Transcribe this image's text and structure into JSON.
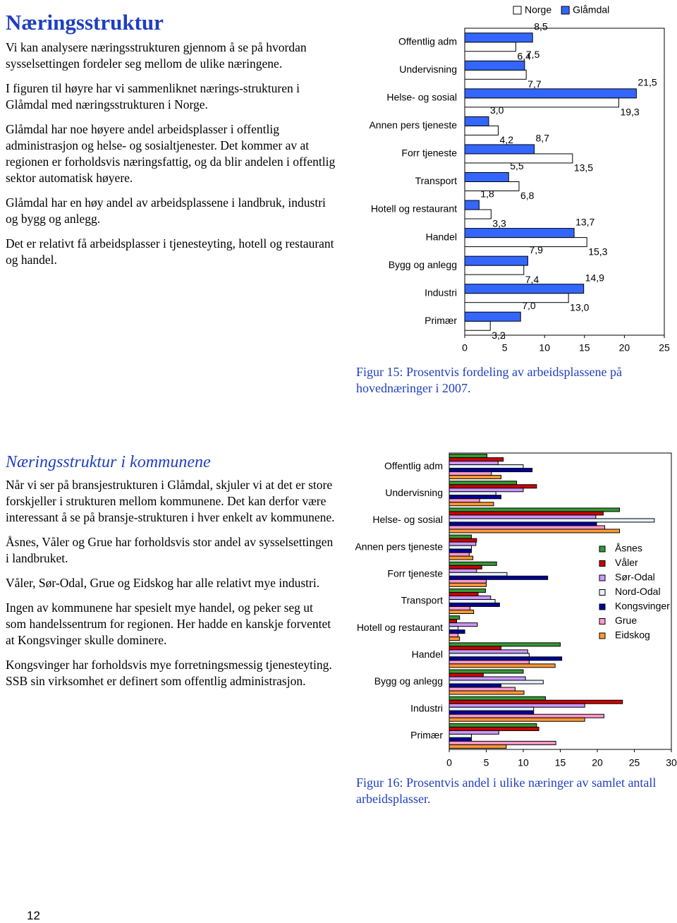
{
  "intro": {
    "title": "Næringsstruktur",
    "paragraphs": [
      "Vi kan analysere næringsstrukturen gjennom å se på hvordan sysselsettingen fordeler seg mellom de ulike næringene.",
      "I figuren til høyre har vi sammenliknet nærings-strukturen i Glåmdal med næringsstrukturen i Norge.",
      "Glåmdal har noe høyere andel arbeidsplasser i offentlig administrasjon og helse- og sosialtjenester. Det kommer av at regionen er forholdsvis næringsfattig, og da blir andelen i offentlig sektor automatisk høyere.",
      "Glåmdal har en høy andel av arbeidsplassene i landbruk, industri og bygg og anlegg.",
      "Det er relativt få arbeidsplasser i tjenesteyting, hotell og restaurant og handel."
    ]
  },
  "section2": {
    "title": "Næringsstruktur i kommunene",
    "paragraphs": [
      "Når vi ser på bransjestrukturen i Glåmdal, skjuler vi at det er store forskjeller i strukturen mellom kommunene. Det kan derfor være interessant å se på bransje-strukturen i hver enkelt av kommunene.",
      "Åsnes, Våler og Grue har forholdsvis stor andel av sysselsettingen i landbruket.",
      "Våler, Sør-Odal, Grue og Eidskog har alle relativt mye industri.",
      "Ingen av kommunene har spesielt mye handel, og peker seg ut som handelssentrum for regionen.  Her hadde en kanskje forventet at Kongsvinger skulle dominere.",
      "Kongsvinger har forholdsvis mye forretningsmessig tjenesteyting.  SSB sin virksomhet er definert som offentlig administrasjon."
    ]
  },
  "page_number": "12",
  "chart_data": [
    {
      "type": "bar",
      "orientation": "horizontal",
      "categories": [
        "Offentlig adm",
        "Undervisning",
        "Helse- og sosial",
        "Annen pers tjeneste",
        "Forr tjeneste",
        "Transport",
        "Hotell og restaurant",
        "Handel",
        "Bygg og anlegg",
        "Industri",
        "Primær"
      ],
      "series": [
        {
          "name": "Norge",
          "color": "#ffffff",
          "values": [
            6.4,
            7.7,
            19.3,
            4.2,
            13.5,
            6.8,
            3.3,
            15.3,
            7.4,
            13.0,
            3.2
          ],
          "value_labels": [
            "6,4",
            "7,7",
            "19,3",
            "4,2",
            "13,5",
            "6,8",
            "3,3",
            "15,3",
            "7,4",
            "13,0",
            "3,2"
          ]
        },
        {
          "name": "Glåmdal",
          "color": "#3366ff",
          "values": [
            8.5,
            7.5,
            21.5,
            3.0,
            8.7,
            5.5,
            1.8,
            13.7,
            7.9,
            14.9,
            7.0
          ],
          "value_labels": [
            "8,5",
            "7,5",
            "21,5",
            "3,0",
            "8,7",
            "5,5",
            "1,8",
            "13,7",
            "7,9",
            "14,9",
            "7,0"
          ]
        }
      ],
      "xlim": [
        0,
        25
      ],
      "xticks": [
        0,
        5,
        10,
        15,
        20,
        25
      ],
      "legend": "top",
      "caption": "Figur 15: Prosentvis fordeling av arbeidsplassene på hovednæringer i 2007."
    },
    {
      "type": "bar",
      "orientation": "horizontal",
      "categories": [
        "Offentlig adm",
        "Undervisning",
        "Helse- og sosial",
        "Annen pers tjeneste",
        "Forr tjeneste",
        "Transport",
        "Hotell og restaurant",
        "Handel",
        "Bygg og anlegg",
        "Industri",
        "Primær"
      ],
      "series": [
        {
          "name": "Åsnes",
          "color": "#339933",
          "values": [
            5.1,
            9.1,
            23.0,
            3.0,
            6.4,
            4.9,
            1.4,
            15.0,
            10.0,
            13.0,
            11.8
          ]
        },
        {
          "name": "Våler",
          "color": "#cc0000",
          "values": [
            7.3,
            11.8,
            20.8,
            3.7,
            4.4,
            3.9,
            1.0,
            7.0,
            4.6,
            23.4,
            12.1
          ]
        },
        {
          "name": "Sør-Odal",
          "color": "#cc99ff",
          "values": [
            6.6,
            10.0,
            19.8,
            3.6,
            3.7,
            5.6,
            3.8,
            10.6,
            10.3,
            18.3,
            6.7
          ]
        },
        {
          "name": "Nord-Odal",
          "color": "#e6f2ff",
          "values": [
            10.0,
            6.3,
            27.7,
            3.0,
            7.8,
            6.2,
            1.2,
            10.8,
            12.7,
            11.4,
            3.0
          ]
        },
        {
          "name": "Kongsvinger",
          "color": "#000099",
          "values": [
            11.2,
            7.0,
            19.9,
            3.0,
            13.3,
            6.8,
            2.1,
            15.2,
            7.0,
            11.4,
            3.0
          ]
        },
        {
          "name": "Grue",
          "color": "#ff99cc",
          "values": [
            5.7,
            4.1,
            21.0,
            2.7,
            5.0,
            2.8,
            1.2,
            10.8,
            8.9,
            20.9,
            14.4
          ]
        },
        {
          "name": "Eidskog",
          "color": "#ff9933",
          "values": [
            7.0,
            6.0,
            23.0,
            3.2,
            5.0,
            3.3,
            1.4,
            14.3,
            10.1,
            18.3,
            7.7
          ]
        }
      ],
      "xlim": [
        0,
        30
      ],
      "xticks": [
        0,
        5,
        10,
        15,
        20,
        25,
        30
      ],
      "legend": "right",
      "caption": "Figur 16: Prosentvis andel i ulike næringer av samlet antall arbeidsplasser."
    }
  ]
}
